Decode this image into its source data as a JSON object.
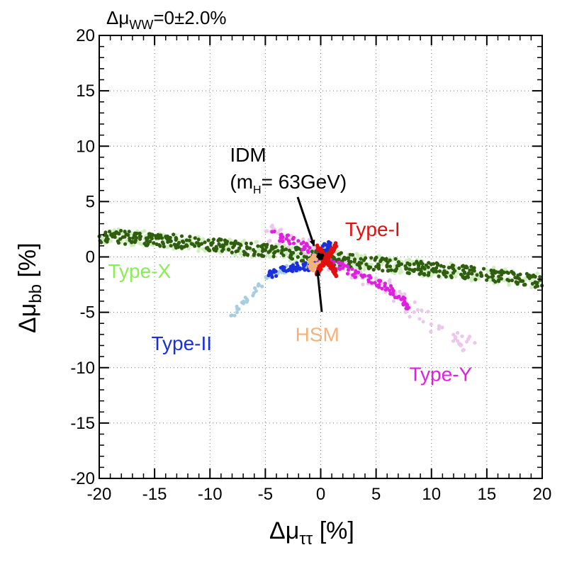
{
  "chart_data": {
    "type": "scatter",
    "title": "Δμ",
    "title_sub": "WW",
    "title_value": "=0±2.0%",
    "xlabel": "Δμ",
    "xlabel_sub": "ττ",
    "xlabel_unit": " [%]",
    "ylabel": "Δμ",
    "ylabel_sub": "bb",
    "ylabel_unit": " [%]",
    "xlim": [
      -20,
      20
    ],
    "ylim": [
      -20,
      20
    ],
    "grid": true,
    "grid_style": "dotted",
    "xticks": [
      -20,
      -15,
      -10,
      -5,
      0,
      5,
      10,
      15,
      20
    ],
    "yticks": [
      -20,
      -15,
      -10,
      -5,
      0,
      5,
      10,
      15,
      20
    ],
    "xtick_labels": [
      "-20",
      "-15",
      "-10",
      "-5",
      "0",
      "5",
      "10",
      "15",
      "20"
    ],
    "ytick_labels": [
      "-20",
      "-15",
      "-10",
      "-5",
      "0",
      "5",
      "10",
      "15",
      "20"
    ],
    "series": [
      {
        "name": "Type-X",
        "color": "#2e5e0e",
        "color_light": "#cfeebd",
        "kind": "band",
        "x": [
          -20,
          -15,
          -10,
          -5,
          0,
          5,
          10,
          15,
          20
        ],
        "y": [
          1.9,
          1.6,
          1.1,
          0.6,
          0.0,
          -0.6,
          -1.1,
          -1.6,
          -2.2
        ],
        "spread": 0.6
      },
      {
        "name": "Type-Y",
        "color": "#e020e0",
        "color_light": "#ecc6ec",
        "kind": "band",
        "x": [
          -5,
          -3,
          -1,
          0,
          2,
          4,
          6,
          8,
          10,
          12,
          14
        ],
        "y": [
          2.3,
          1.6,
          0.7,
          -0.3,
          -1.0,
          -1.8,
          -2.7,
          -4.5,
          -6.0,
          -7.3,
          -8.3
        ],
        "spread": 0.5
      },
      {
        "name": "Type-II",
        "color": "#1a30d8",
        "color_light": "#a9cde0",
        "kind": "band",
        "x": [
          -8.3,
          -7,
          -5.8,
          -4.8,
          -3.8,
          -2.8,
          -1.8,
          -0.8,
          0.3,
          1.0
        ],
        "y": [
          -5.6,
          -4.1,
          -3.0,
          -1.7,
          -1.3,
          -1.0,
          -0.9,
          -0.8,
          0.8,
          1.1
        ],
        "spread": 0.35
      },
      {
        "name": "Type-I",
        "color": "#e01010",
        "kind": "cluster",
        "center": [
          0.5,
          -0.2
        ],
        "rx": 0.8,
        "ry": 1.2
      },
      {
        "name": "HSM",
        "color": "#f4b27a",
        "kind": "cluster",
        "center": [
          -0.4,
          -0.6
        ],
        "rx": 0.7,
        "ry": 0.8
      },
      {
        "name": "IDM (m_H = 63GeV)",
        "color": "#000000",
        "kind": "point",
        "center": [
          0.0,
          0.0
        ]
      }
    ],
    "annotations": [
      {
        "id": "idm",
        "lines": [
          "IDM",
          "(m",
          "H",
          "= 63GeV)"
        ],
        "color": "#000000",
        "x": -8.2,
        "y": 8.6,
        "arrow_to": [
          -0.6,
          1.0
        ]
      },
      {
        "id": "type-i",
        "text": "Type-I",
        "color": "#e01010",
        "x": 2.2,
        "y": 1.9
      },
      {
        "id": "type-x",
        "text": "Type-X",
        "color": "#88ee55",
        "x": -19.2,
        "y": -1.9
      },
      {
        "id": "type-ii",
        "text": "Type-II",
        "color": "#1a30d8",
        "x": -15.3,
        "y": -8.4
      },
      {
        "id": "hsm",
        "text": "HSM",
        "color": "#f4b27a",
        "x": -2.3,
        "y": -7.6,
        "arrow_to": [
          -0.3,
          -1.2
        ]
      },
      {
        "id": "type-y",
        "text": "Type-Y",
        "color": "#e020e0",
        "x": 8.0,
        "y": -11.2
      }
    ]
  }
}
